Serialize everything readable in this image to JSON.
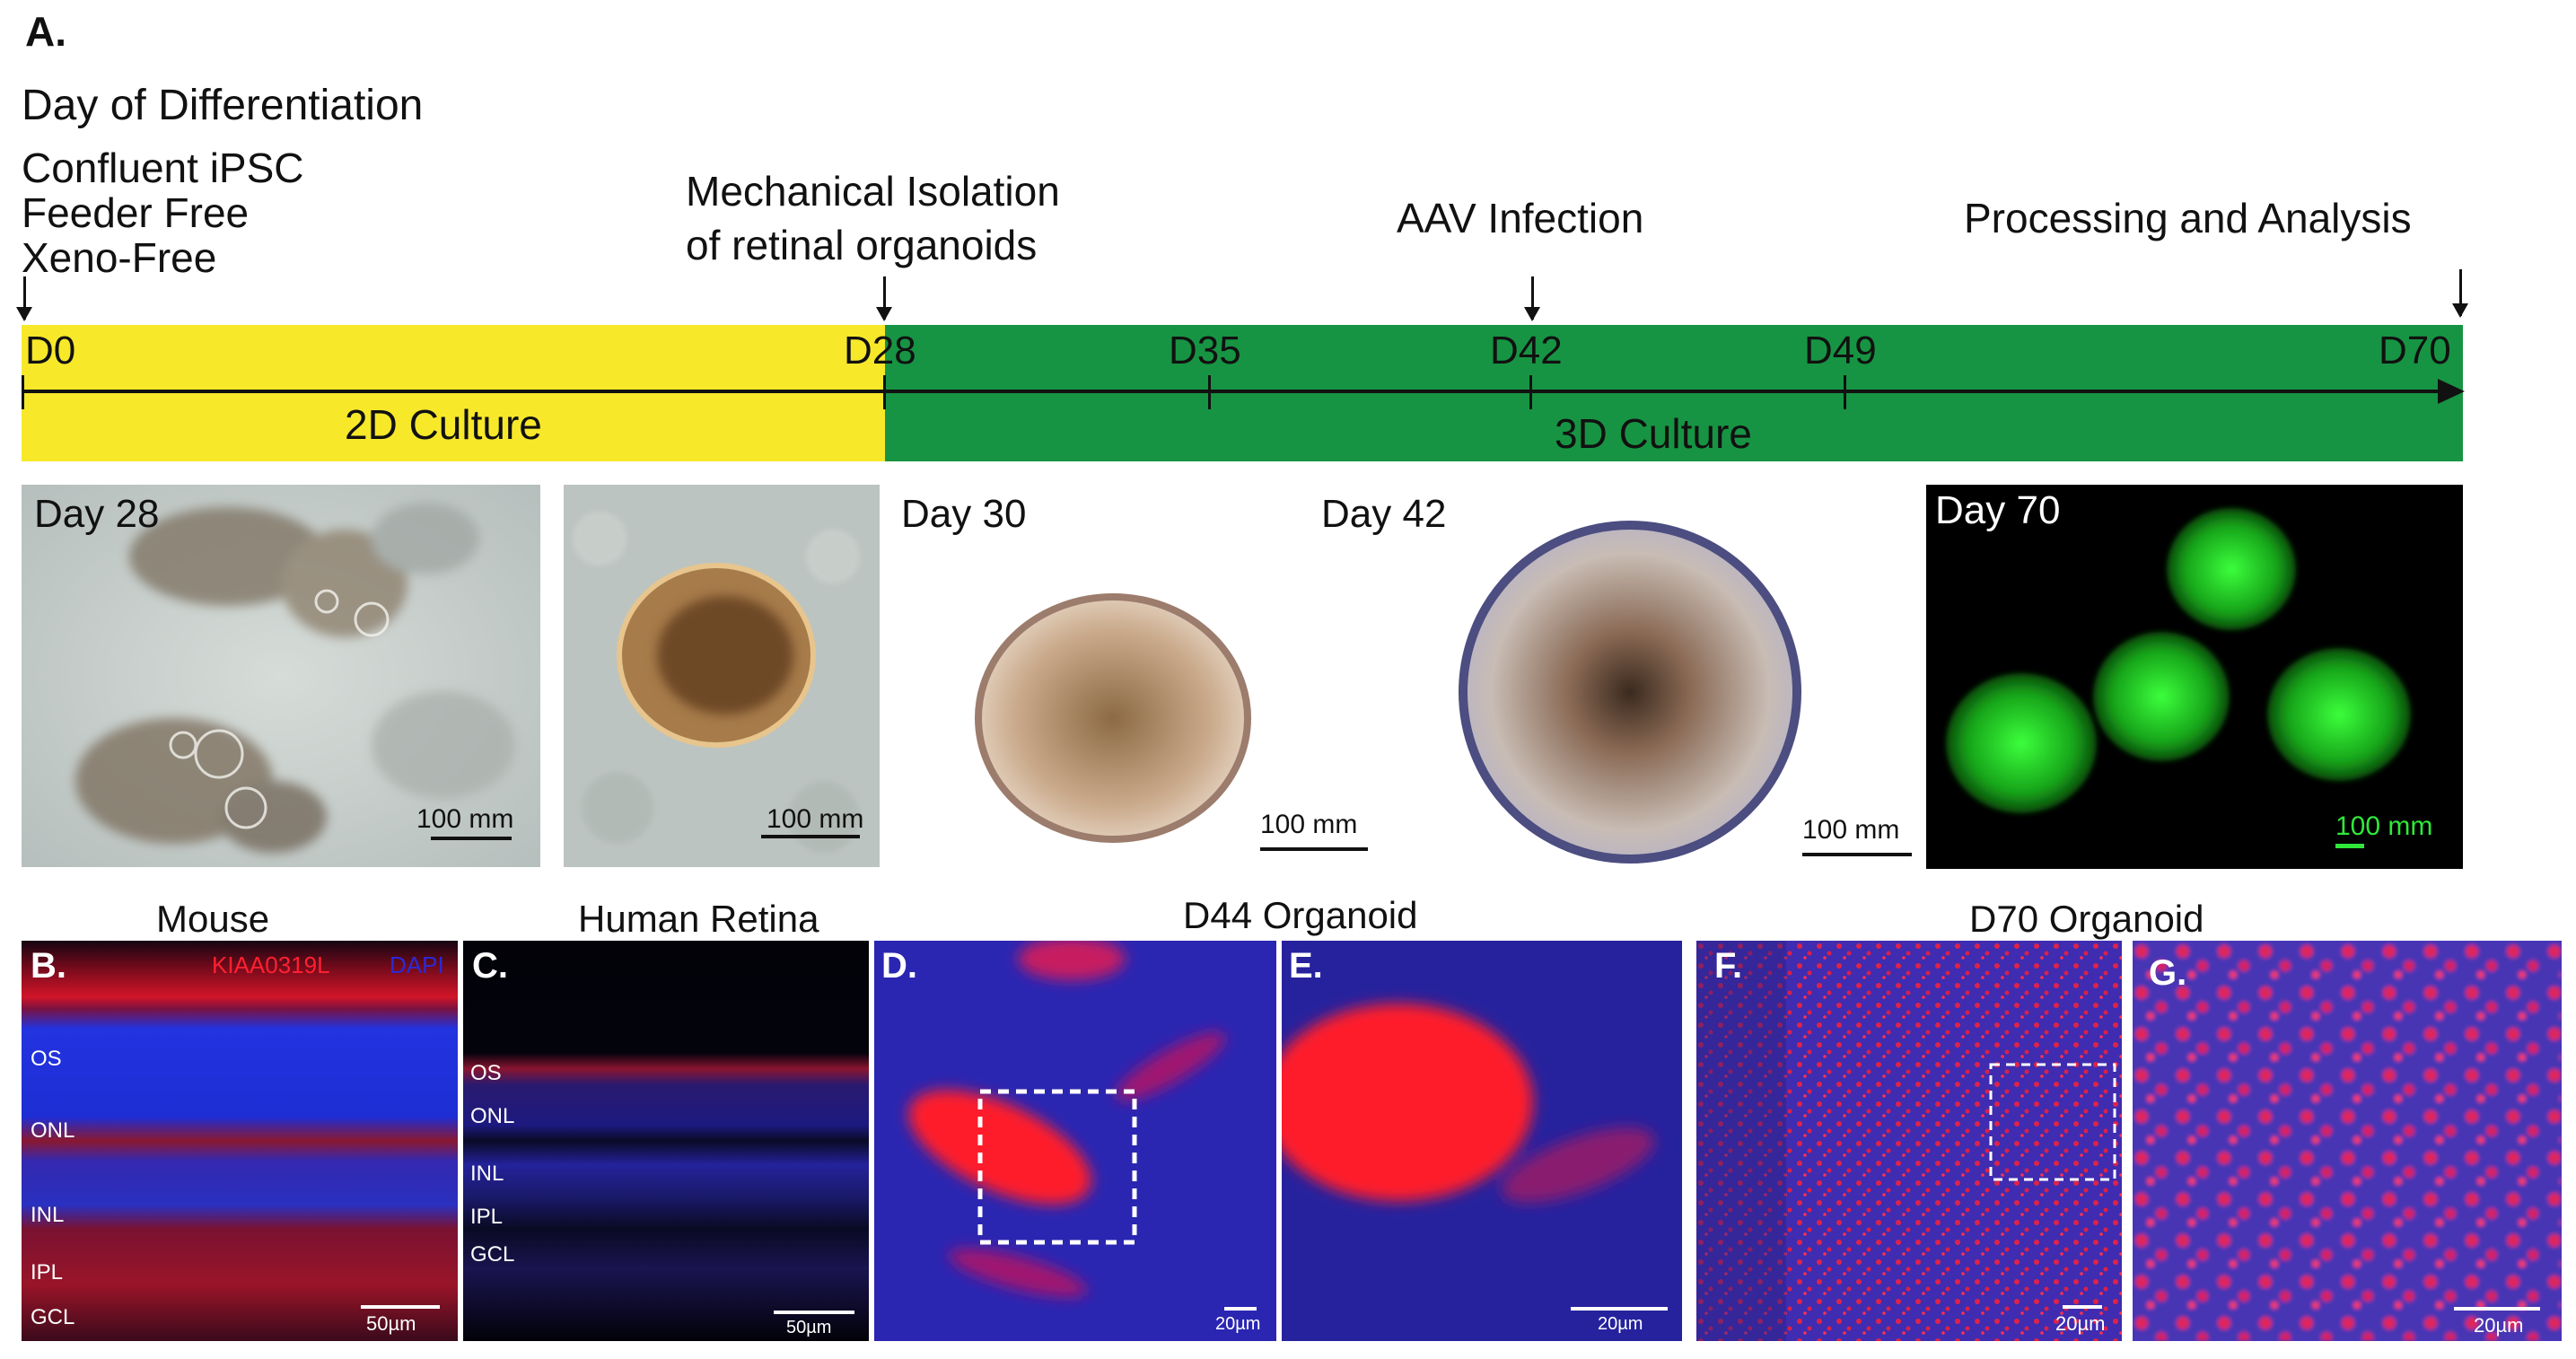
{
  "figure": {
    "panel_a_label": "A.",
    "timeline_heading": "Day of Differentiation",
    "start_notes": [
      "Confluent iPSC",
      "Feeder Free",
      "Xeno-Free"
    ],
    "event_isolation": [
      "Mechanical Isolation",
      "of retinal organoids"
    ],
    "event_aav": "AAV Infection",
    "event_processing": "Processing and Analysis",
    "days": [
      "D0",
      "D28",
      "D35",
      "D42",
      "D49",
      "D70"
    ],
    "phase_2d": "2D Culture",
    "phase_3d": "3D Culture",
    "colors": {
      "phase_2d": "#f7e82a",
      "phase_3d": "#179443",
      "fluor_green": "#2fe83a",
      "stain_red": "#ff2030",
      "stain_blue": "#2a2ad8"
    }
  },
  "photos": {
    "day28_label": "Day 28",
    "day30_label": "Day 30",
    "day42_label": "Day 42",
    "day70_label": "Day 70",
    "scale_100mm": "100 mm"
  },
  "histology": {
    "mouse_title": "Mouse",
    "human_title": "Human Retina",
    "d44_title": "D44 Organoid",
    "d70_title": "D70 Organoid",
    "legend_red": "KIAA0319L",
    "legend_blue": "DAPI",
    "panel_b": "B.",
    "panel_c": "C.",
    "panel_d": "D.",
    "panel_e": "E.",
    "panel_f": "F.",
    "panel_g": "G.",
    "mouse_layers": [
      "OS",
      "ONL",
      "INL",
      "IPL",
      "GCL"
    ],
    "human_layers": [
      "OS",
      "ONL",
      "INL",
      "IPL",
      "GCL"
    ],
    "scale_50um": "50µm",
    "scale_20um": "20µm"
  }
}
